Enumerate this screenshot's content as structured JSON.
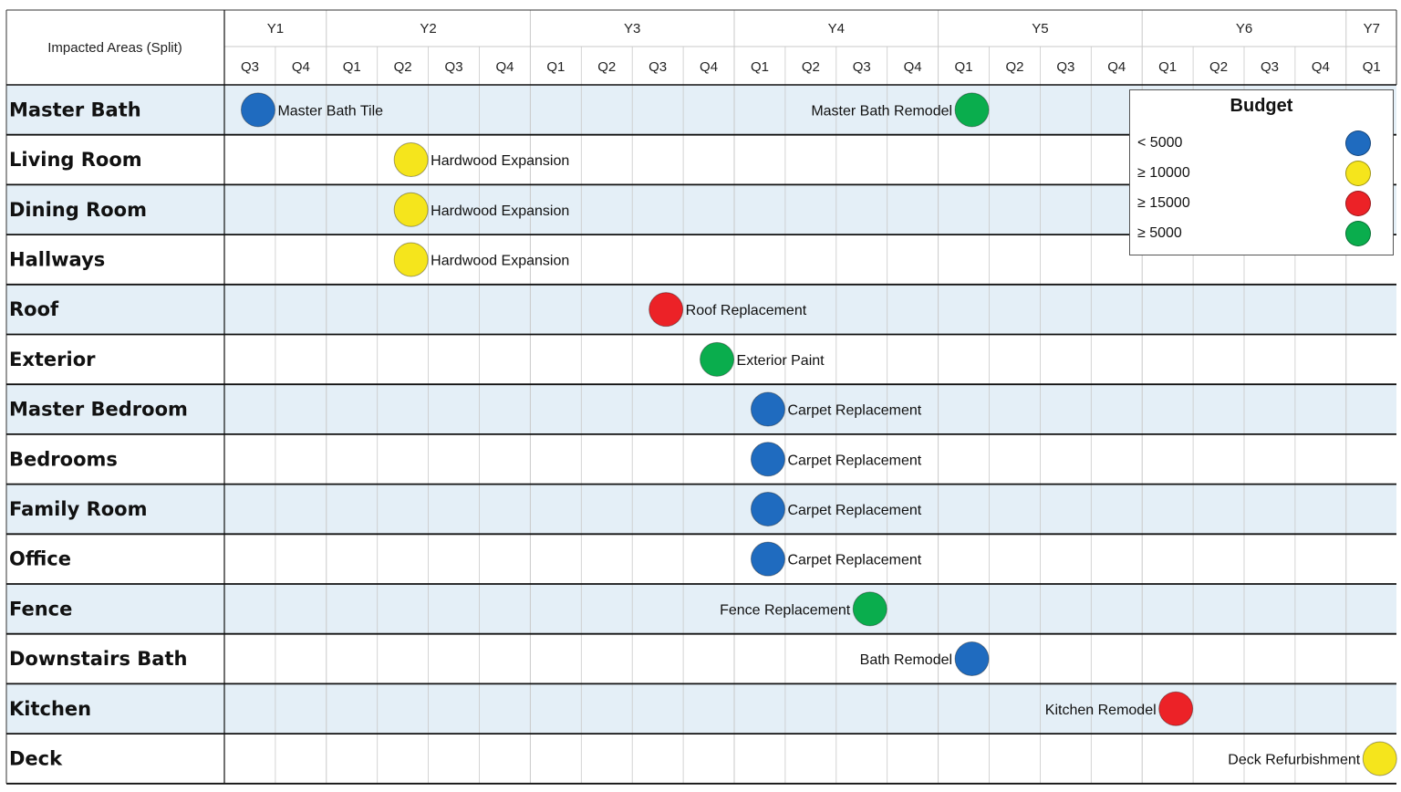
{
  "chart_data": {
    "type": "scatter",
    "row_header": "Impacted Areas (Split)",
    "years": [
      {
        "label": "Y1",
        "quarters": [
          "Q3",
          "Q4"
        ]
      },
      {
        "label": "Y2",
        "quarters": [
          "Q1",
          "Q2",
          "Q3",
          "Q4"
        ]
      },
      {
        "label": "Y3",
        "quarters": [
          "Q1",
          "Q2",
          "Q3",
          "Q4"
        ]
      },
      {
        "label": "Y4",
        "quarters": [
          "Q1",
          "Q2",
          "Q3",
          "Q4"
        ]
      },
      {
        "label": "Y5",
        "quarters": [
          "Q1",
          "Q2",
          "Q3",
          "Q4"
        ]
      },
      {
        "label": "Y6",
        "quarters": [
          "Q1",
          "Q2",
          "Q3",
          "Q4"
        ]
      },
      {
        "label": "Y7",
        "quarters": [
          "Q1"
        ]
      }
    ],
    "areas": [
      "Master Bath",
      "Living Room",
      "Dining Room",
      "Hallways",
      "Roof",
      "Exterior",
      "Master Bedroom",
      "Bedrooms",
      "Family Room",
      "Office",
      "Fence",
      "Downstairs Bath",
      "Kitchen",
      "Deck"
    ],
    "budget_categories": [
      {
        "key": "lt5000",
        "label": "< 5000",
        "color": "#1f6bbf"
      },
      {
        "key": "ge10000",
        "label": "≥ 10000",
        "color": "#f5e51c"
      },
      {
        "key": "ge15000",
        "label": "≥ 15000",
        "color": "#ec2227"
      },
      {
        "key": "ge5000",
        "label": "≥ 5000",
        "color": "#0aad4d"
      }
    ],
    "points": [
      {
        "area": "Master Bath",
        "name": "Master Bath Tile",
        "year": "Y1",
        "quarter": "Q3",
        "budget": "lt5000",
        "label_side": "right"
      },
      {
        "area": "Master Bath",
        "name": "Master Bath Remodel",
        "year": "Y5",
        "quarter": "Q1",
        "budget": "ge5000",
        "label_side": "left"
      },
      {
        "area": "Living Room",
        "name": "Hardwood Expansion",
        "year": "Y2",
        "quarter": "Q2",
        "budget": "ge10000",
        "label_side": "right"
      },
      {
        "area": "Dining Room",
        "name": "Hardwood Expansion",
        "year": "Y2",
        "quarter": "Q2",
        "budget": "ge10000",
        "label_side": "right"
      },
      {
        "area": "Hallways",
        "name": "Hardwood Expansion",
        "year": "Y2",
        "quarter": "Q2",
        "budget": "ge10000",
        "label_side": "right"
      },
      {
        "area": "Roof",
        "name": "Roof Replacement",
        "year": "Y3",
        "quarter": "Q3",
        "budget": "ge15000",
        "label_side": "right"
      },
      {
        "area": "Exterior",
        "name": "Exterior Paint",
        "year": "Y3",
        "quarter": "Q4",
        "budget": "ge5000",
        "label_side": "right"
      },
      {
        "area": "Master Bedroom",
        "name": "Carpet Replacement",
        "year": "Y4",
        "quarter": "Q1",
        "budget": "lt5000",
        "label_side": "right"
      },
      {
        "area": "Bedrooms",
        "name": "Carpet Replacement",
        "year": "Y4",
        "quarter": "Q1",
        "budget": "lt5000",
        "label_side": "right"
      },
      {
        "area": "Family Room",
        "name": "Carpet Replacement",
        "year": "Y4",
        "quarter": "Q1",
        "budget": "lt5000",
        "label_side": "right"
      },
      {
        "area": "Office",
        "name": "Carpet Replacement",
        "year": "Y4",
        "quarter": "Q1",
        "budget": "lt5000",
        "label_side": "right"
      },
      {
        "area": "Fence",
        "name": "Fence Replacement",
        "year": "Y4",
        "quarter": "Q3",
        "budget": "ge5000",
        "label_side": "left"
      },
      {
        "area": "Downstairs Bath",
        "name": "Bath Remodel",
        "year": "Y5",
        "quarter": "Q1",
        "budget": "lt5000",
        "label_side": "left"
      },
      {
        "area": "Kitchen",
        "name": "Kitchen Remodel",
        "year": "Y6",
        "quarter": "Q1",
        "budget": "ge15000",
        "label_side": "left"
      },
      {
        "area": "Deck",
        "name": "Deck Refurbishment",
        "year": "Y7",
        "quarter": "Q1",
        "budget": "ge10000",
        "label_side": "left"
      }
    ],
    "legend": {
      "title": "Budget",
      "position": "top-right"
    },
    "colors": {
      "band": "#e4eff7",
      "grid": "#c9c9c9",
      "row_line": "#111111"
    },
    "grid": true
  }
}
